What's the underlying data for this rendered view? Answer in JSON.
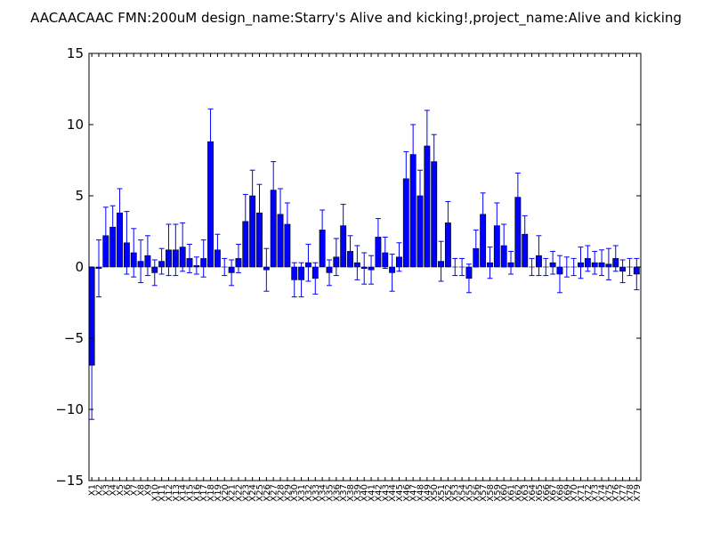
{
  "chart_data": {
    "type": "bar",
    "title": "AACAACAAC  FMN:200uM  design_name:Starry's Alive and kicking!,project_name:Alive and kicking",
    "xlabel": "",
    "ylabel": "",
    "ylim": [
      -15,
      15
    ],
    "yticks": [
      -15,
      -10,
      -5,
      0,
      5,
      10,
      15
    ],
    "ytick_labels": [
      "−15",
      "−10",
      "−5",
      "0",
      "5",
      "10",
      "15"
    ],
    "grid": false,
    "legend": "none",
    "bar_color": "#0000ff",
    "error_color": "#0000ff",
    "categories": [
      "X1",
      "X2",
      "X3",
      "X4",
      "X5",
      "X6",
      "X7",
      "X8",
      "X9",
      "X10",
      "X11",
      "X12",
      "X13",
      "X14",
      "X15",
      "X16",
      "X17",
      "X18",
      "X19",
      "X20",
      "X21",
      "X22",
      "X23",
      "X24",
      "X25",
      "X26",
      "X27",
      "X28",
      "X29",
      "X30",
      "X31",
      "X32",
      "X33",
      "X34",
      "X35",
      "X36",
      "X37",
      "X38",
      "X39",
      "X40",
      "X41",
      "X42",
      "X43",
      "X44",
      "X45",
      "X46",
      "X47",
      "X48",
      "X49",
      "X50",
      "X51",
      "X52",
      "X53",
      "X54",
      "X55",
      "X56",
      "X57",
      "X58",
      "X59",
      "X60",
      "X61",
      "X62",
      "X63",
      "X64",
      "X65",
      "X66",
      "X67",
      "X68",
      "X69",
      "X70",
      "X71",
      "X72",
      "X73",
      "X74",
      "X75",
      "X76",
      "X77",
      "X78",
      "X79"
    ],
    "values": [
      -6.9,
      -0.1,
      2.2,
      2.8,
      3.8,
      1.7,
      1.0,
      0.4,
      0.8,
      -0.4,
      0.4,
      1.2,
      1.2,
      1.4,
      0.6,
      0.1,
      0.6,
      8.8,
      1.2,
      0.0,
      -0.4,
      0.6,
      3.2,
      5.0,
      3.8,
      -0.2,
      5.4,
      3.7,
      3.0,
      -0.9,
      -0.9,
      0.3,
      -0.8,
      2.6,
      -0.4,
      0.7,
      2.9,
      1.1,
      0.3,
      -0.1,
      -0.2,
      2.1,
      1.0,
      -0.4,
      0.7,
      6.2,
      7.9,
      5.0,
      8.5,
      7.4,
      0.4,
      3.1,
      0.0,
      0.0,
      -0.8,
      1.3,
      3.7,
      0.3,
      2.9,
      1.5,
      0.3,
      4.9,
      2.3,
      0.0,
      0.8,
      0.0,
      0.3,
      -0.5,
      0.0,
      0.0,
      0.3,
      0.6,
      0.3,
      0.3,
      0.2,
      0.6,
      -0.3,
      0.0,
      -0.5
    ],
    "errors": [
      3.8,
      2.0,
      2.0,
      1.5,
      1.7,
      2.2,
      1.7,
      1.5,
      1.4,
      0.9,
      0.9,
      1.8,
      1.8,
      1.7,
      1.0,
      0.6,
      1.3,
      2.3,
      1.1,
      0.6,
      0.9,
      1.0,
      1.9,
      1.8,
      2.0,
      1.5,
      2.0,
      1.8,
      1.5,
      1.2,
      1.2,
      1.3,
      1.1,
      1.4,
      0.9,
      1.3,
      1.5,
      1.1,
      1.2,
      1.1,
      1.0,
      1.3,
      1.1,
      1.3,
      1.0,
      1.9,
      2.1,
      1.8,
      2.5,
      1.9,
      1.4,
      1.5,
      0.6,
      0.6,
      1.0,
      1.3,
      1.5,
      1.1,
      1.6,
      1.5,
      0.8,
      1.7,
      1.3,
      0.6,
      1.4,
      0.6,
      0.8,
      1.3,
      0.7,
      0.6,
      1.1,
      0.9,
      0.8,
      0.9,
      1.1,
      0.9,
      0.8,
      0.6,
      1.1
    ]
  }
}
